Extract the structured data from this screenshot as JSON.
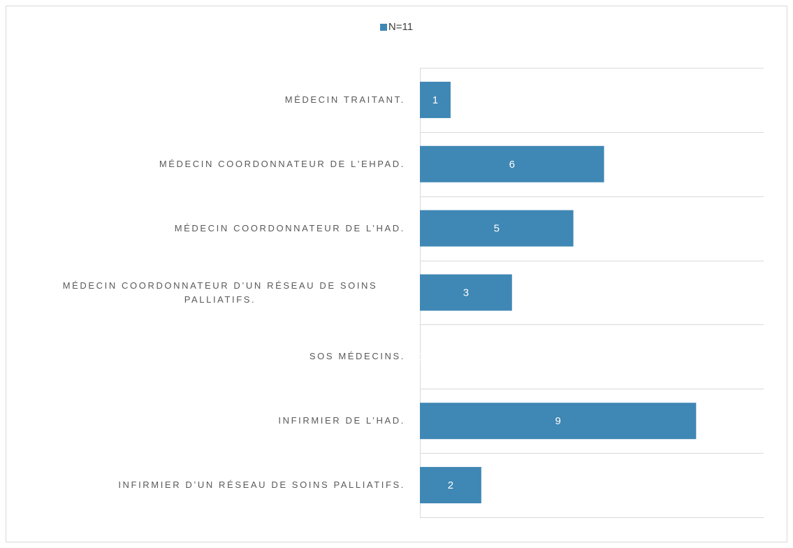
{
  "chart_data": {
    "type": "bar",
    "orientation": "horizontal",
    "categories": [
      "MÉDECIN TRAITANT.",
      "MÉDECIN COORDONNATEUR DE L'EHPAD.",
      "MÉDECIN COORDONNATEUR DE L’HAD.",
      "MÉDECIN COORDONNATEUR D’UN RÉSEAU DE SOINS PALLIATIFS.",
      "SOS MÉDECINS.",
      "INFIRMIER DE L’HAD.",
      "INFIRMIER D’UN RÉSEAU DE SOINS PALLIATIFS."
    ],
    "series": [
      {
        "name": "N=11",
        "color": "#3f87b4",
        "values": [
          1,
          6,
          5,
          3,
          0,
          9,
          2
        ]
      }
    ],
    "xlim": [
      0,
      11.2
    ]
  }
}
